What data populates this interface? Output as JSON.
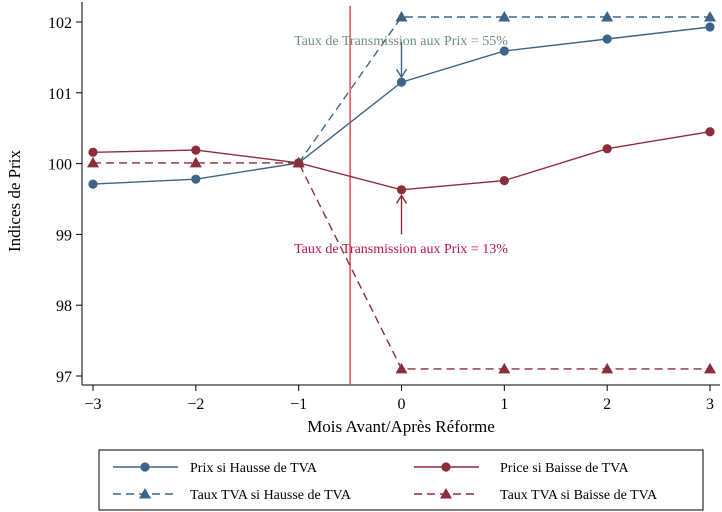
{
  "chart_data": {
    "type": "line",
    "xlabel": "Mois Avant/Après Réforme",
    "ylabel": "Indices de Prix",
    "x": [
      -3,
      -2,
      -1,
      0,
      1,
      2,
      3
    ],
    "xlim": [
      -3,
      3
    ],
    "ylim": [
      96.88,
      102.08
    ],
    "xticks": [
      -3,
      -2,
      -1,
      0,
      1,
      2,
      3
    ],
    "xtick_labels": [
      "−3",
      "−2",
      "−1",
      "0",
      "1",
      "2",
      "3"
    ],
    "yticks": [
      97,
      98,
      99,
      100,
      101,
      102
    ],
    "grid": false,
    "reference_line_x": -0.5,
    "series": [
      {
        "name": "Prix si Hausse de TVA",
        "values": [
          99.71,
          99.78,
          100.01,
          101.15,
          101.59,
          101.76,
          101.93
        ],
        "color": "#3e6387",
        "dash": "solid",
        "marker": "circle"
      },
      {
        "name": "Price si Baisse de TVA",
        "values": [
          100.16,
          100.19,
          100.01,
          99.63,
          99.76,
          100.21,
          100.45
        ],
        "color": "#8c2d3c",
        "dash": "solid",
        "marker": "circle"
      },
      {
        "name": "Taux TVA si Hausse de TVA",
        "values": [
          null,
          null,
          100.01,
          102.07,
          102.07,
          102.07,
          102.07
        ],
        "color": "#3e6387",
        "dash": "dashed",
        "marker": "triangle"
      },
      {
        "name": "Taux TVA si Baisse de TVA",
        "values": [
          100.01,
          100.01,
          100.01,
          97.1,
          97.1,
          97.1,
          97.1
        ],
        "color": "#8c2d3c",
        "dash": "dashed",
        "marker": "triangle"
      }
    ],
    "annotations": [
      {
        "text": "Taux de Transmission aux Prix = 55%",
        "color": "#6f8f80",
        "arrow_x": 0,
        "arrow_from_y": 101.72,
        "arrow_to_y": 101.22
      },
      {
        "text": "Taux de Transmission aux Prix = 13%",
        "color": "#c0134a",
        "arrow_x": 0,
        "arrow_from_y": 99.0,
        "arrow_to_y": 99.55
      }
    ],
    "legend_position": "bottom",
    "colors": {
      "blue": "#3e6387",
      "red": "#8c2d3c",
      "refline": "#e03c4d"
    }
  }
}
